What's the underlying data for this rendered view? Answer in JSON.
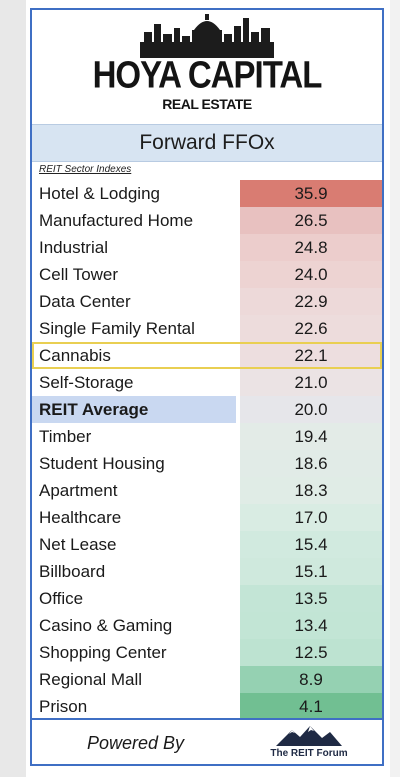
{
  "logo": {
    "line1": "HOYA CAPITAL",
    "line2": "REAL ESTATE"
  },
  "forum_logo_text": "The REIT Forum",
  "footer": {
    "powered_by": "Powered By"
  },
  "chart_data": {
    "type": "table",
    "title": "Forward FFOx",
    "subtitle": "REIT Sector Indexes",
    "rows": [
      {
        "label": "Hotel & Lodging",
        "value": "35.9",
        "color": "#d97c72"
      },
      {
        "label": "Manufactured Home",
        "value": "26.5",
        "color": "#e8c1c0"
      },
      {
        "label": "Industrial",
        "value": "24.8",
        "color": "#eccdcc"
      },
      {
        "label": "Cell Tower",
        "value": "24.0",
        "color": "#edd3d2"
      },
      {
        "label": "Data Center",
        "value": "22.9",
        "color": "#edd9d9"
      },
      {
        "label": "Single Family Rental",
        "value": "22.6",
        "color": "#eddcdc"
      },
      {
        "label": "Cannabis",
        "value": "22.1",
        "color": "#eddedf"
      },
      {
        "label": "Self-Storage",
        "value": "21.0",
        "color": "#ebe3e4"
      },
      {
        "label": "REIT Average",
        "value": "20.0",
        "color": "#e6e6ea",
        "is_average": true
      },
      {
        "label": "Timber",
        "value": "19.4",
        "color": "#e3ebe7"
      },
      {
        "label": "Student Housing",
        "value": "18.6",
        "color": "#e1ebe7"
      },
      {
        "label": "Apartment",
        "value": "18.3",
        "color": "#e0ece6"
      },
      {
        "label": "Healthcare",
        "value": "17.0",
        "color": "#d9ece3"
      },
      {
        "label": "Net Lease",
        "value": "15.4",
        "color": "#d1eadf"
      },
      {
        "label": "Billboard",
        "value": "15.1",
        "color": "#cfe9dd"
      },
      {
        "label": "Office",
        "value": "13.5",
        "color": "#c3e5d6"
      },
      {
        "label": "Casino & Gaming",
        "value": "13.4",
        "color": "#c2e5d5"
      },
      {
        "label": "Shopping Center",
        "value": "12.5",
        "color": "#bde3d1"
      },
      {
        "label": "Regional Mall",
        "value": "8.9",
        "color": "#95d1b2"
      },
      {
        "label": "Prison",
        "value": "4.1",
        "color": "#71bf92"
      }
    ],
    "highlighted_row": "Cannabis",
    "highlight_color": "#e9cf52"
  }
}
